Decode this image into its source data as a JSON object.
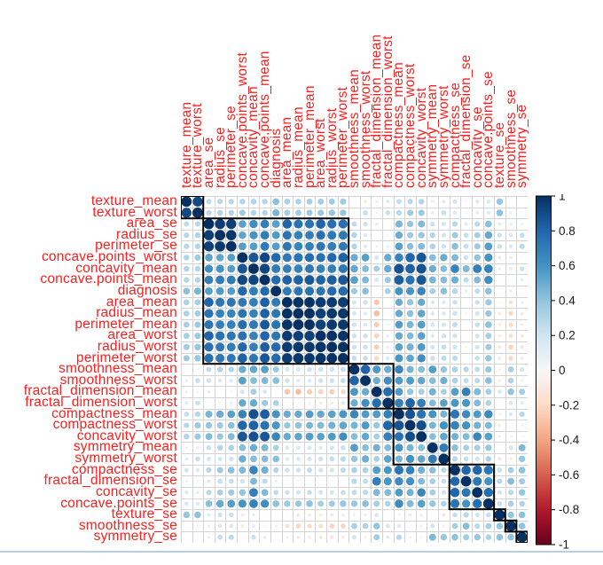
{
  "chart_data": {
    "type": "heatmap",
    "subtype": "correlation-matrix",
    "title": "",
    "variables": [
      "texture_mean",
      "texture_worst",
      "area_se",
      "radius_se",
      "perimeter_se",
      "concave.points_worst",
      "concavity_mean",
      "concave.points_mean",
      "diagnosis",
      "area_mean",
      "radius_mean",
      "perimeter_mean",
      "area_worst",
      "radius_worst",
      "perimeter_worst",
      "smoothness_mean",
      "smoothness_worst",
      "fractal_dimension_mean",
      "fractal_dimension_worst",
      "compactness_mean",
      "compactness_worst",
      "concavity_worst",
      "symmetry_mean",
      "symmetry_worst",
      "compactness_se",
      "fractal_dimension_se",
      "concavity_se",
      "concave.points_se",
      "texture_se",
      "smoothness_se",
      "symmetry_se"
    ],
    "corr_lower_triangle": [
      [
        1
      ],
      [
        0.91,
        1
      ],
      [
        0.26,
        0.28,
        1
      ],
      [
        0.28,
        0.3,
        0.95,
        1
      ],
      [
        0.28,
        0.3,
        0.94,
        0.97,
        1
      ],
      [
        0.3,
        0.36,
        0.54,
        0.53,
        0.56,
        1
      ],
      [
        0.3,
        0.3,
        0.62,
        0.6,
        0.56,
        0.86,
        1
      ],
      [
        0.29,
        0.3,
        0.69,
        0.7,
        0.71,
        0.91,
        0.92,
        1
      ],
      [
        0.42,
        0.46,
        0.55,
        0.57,
        0.56,
        0.79,
        0.7,
        0.78,
        1
      ],
      [
        0.32,
        0.34,
        0.8,
        0.73,
        0.73,
        0.72,
        0.69,
        0.82,
        0.71,
        1
      ],
      [
        0.32,
        0.35,
        0.74,
        0.68,
        0.67,
        0.74,
        0.68,
        0.82,
        0.73,
        0.99,
        1
      ],
      [
        0.33,
        0.36,
        0.74,
        0.69,
        0.69,
        0.77,
        0.72,
        0.85,
        0.74,
        0.99,
        1.0,
        1
      ],
      [
        0.34,
        0.37,
        0.81,
        0.75,
        0.73,
        0.75,
        0.68,
        0.81,
        0.73,
        0.96,
        0.94,
        0.94,
        1
      ],
      [
        0.35,
        0.39,
        0.76,
        0.72,
        0.7,
        0.79,
        0.69,
        0.83,
        0.78,
        0.96,
        0.97,
        0.97,
        0.99,
        1
      ],
      [
        0.36,
        0.39,
        0.76,
        0.72,
        0.72,
        0.82,
        0.73,
        0.86,
        0.78,
        0.96,
        0.97,
        0.97,
        0.98,
        0.99,
        1
      ],
      [
        -0.02,
        0.04,
        0.25,
        0.3,
        0.3,
        0.5,
        0.52,
        0.55,
        0.36,
        0.18,
        0.17,
        0.21,
        0.21,
        0.21,
        0.24,
        1
      ],
      [
        0.08,
        0.23,
        0.21,
        0.14,
        0.13,
        0.55,
        0.43,
        0.45,
        0.42,
        0.21,
        0.12,
        0.15,
        0.21,
        0.22,
        0.24,
        0.81,
        1
      ],
      [
        -0.08,
        -0.05,
        -0.09,
        0.0,
        0.04,
        0.18,
        0.34,
        0.17,
        -0.01,
        -0.28,
        -0.31,
        -0.26,
        -0.23,
        -0.25,
        -0.21,
        0.58,
        0.5,
        1
      ],
      [
        0.12,
        0.22,
        0.02,
        0.04,
        0.09,
        0.51,
        0.51,
        0.37,
        0.32,
        0.0,
        -0.01,
        0.05,
        0.08,
        0.09,
        0.14,
        0.5,
        0.62,
        0.77,
        1
      ],
      [
        0.24,
        0.28,
        0.46,
        0.5,
        0.55,
        0.67,
        0.88,
        0.83,
        0.6,
        0.5,
        0.51,
        0.56,
        0.51,
        0.54,
        0.59,
        0.66,
        0.57,
        0.57,
        0.69,
        1
      ],
      [
        0.28,
        0.36,
        0.39,
        0.36,
        0.42,
        0.8,
        0.82,
        0.75,
        0.59,
        0.39,
        0.41,
        0.46,
        0.44,
        0.48,
        0.53,
        0.47,
        0.57,
        0.39,
        0.81,
        0.87,
        1
      ],
      [
        0.3,
        0.37,
        0.44,
        0.38,
        0.44,
        0.86,
        0.88,
        0.86,
        0.66,
        0.51,
        0.53,
        0.56,
        0.54,
        0.57,
        0.62,
        0.43,
        0.52,
        0.34,
        0.69,
        0.75,
        0.89,
        1
      ],
      [
        0.07,
        0.09,
        0.22,
        0.3,
        0.31,
        0.43,
        0.5,
        0.46,
        0.33,
        0.15,
        0.15,
        0.18,
        0.14,
        0.19,
        0.22,
        0.56,
        0.43,
        0.48,
        0.44,
        0.6,
        0.47,
        0.43,
        1
      ],
      [
        0.11,
        0.23,
        0.18,
        0.19,
        0.21,
        0.5,
        0.43,
        0.43,
        0.42,
        0.14,
        0.16,
        0.19,
        0.21,
        0.24,
        0.27,
        0.39,
        0.49,
        0.33,
        0.54,
        0.47,
        0.61,
        0.53,
        0.7,
        1
      ],
      [
        0.19,
        0.14,
        0.28,
        0.36,
        0.42,
        0.45,
        0.67,
        0.49,
        0.29,
        0.21,
        0.21,
        0.25,
        0.2,
        0.2,
        0.26,
        0.32,
        0.32,
        0.56,
        0.59,
        0.74,
        0.68,
        0.48,
        0.42,
        0.28,
        1
      ],
      [
        0.05,
        0.05,
        0.13,
        0.23,
        0.24,
        0.21,
        0.45,
        0.26,
        0.08,
        -0.02,
        -0.04,
        -0.01,
        0.0,
        -0.04,
        0.0,
        0.28,
        0.25,
        0.69,
        0.59,
        0.64,
        0.61,
        0.44,
        0.33,
        0.24,
        0.8,
        1
      ],
      [
        0.14,
        0.1,
        0.27,
        0.33,
        0.36,
        0.4,
        0.69,
        0.44,
        0.25,
        0.21,
        0.19,
        0.23,
        0.19,
        0.19,
        0.23,
        0.25,
        0.27,
        0.45,
        0.44,
        0.57,
        0.48,
        0.66,
        0.34,
        0.2,
        0.8,
        0.73,
        1
      ],
      [
        0.16,
        0.13,
        0.42,
        0.51,
        0.56,
        0.6,
        0.68,
        0.62,
        0.41,
        0.37,
        0.38,
        0.41,
        0.34,
        0.36,
        0.39,
        0.38,
        0.42,
        0.34,
        0.31,
        0.64,
        0.45,
        0.55,
        0.39,
        0.31,
        0.74,
        0.61,
        0.77,
        1
      ],
      [
        0.39,
        0.41,
        0.11,
        0.21,
        0.22,
        -0.1,
        0.08,
        0.02,
        -0.01,
        -0.03,
        -0.1,
        -0.09,
        -0.08,
        -0.11,
        -0.1,
        0.07,
        -0.07,
        0.16,
        0.0,
        0.05,
        -0.09,
        -0.07,
        0.01,
        -0.13,
        0.23,
        0.28,
        0.19,
        0.23,
        1
      ],
      [
        0.01,
        -0.07,
        0.08,
        0.16,
        0.15,
        -0.09,
        0.1,
        0.03,
        -0.07,
        -0.17,
        -0.22,
        -0.2,
        -0.18,
        -0.23,
        -0.22,
        0.33,
        0.31,
        0.4,
        0.17,
        0.14,
        -0.01,
        -0.06,
        0.19,
        -0.07,
        0.34,
        0.43,
        0.27,
        0.33,
        0.4,
        1
      ],
      [
        0.01,
        -0.03,
        0.07,
        0.24,
        0.27,
        -0.03,
        0.22,
        0.1,
        -0.01,
        -0.07,
        -0.1,
        -0.08,
        -0.11,
        -0.13,
        -0.1,
        0.19,
        -0.06,
        0.35,
        0.11,
        0.28,
        0.06,
        0.04,
        0.45,
        0.39,
        0.41,
        0.35,
        0.39,
        0.31,
        0.41,
        0.41,
        1
      ]
    ],
    "clusters": [
      [
        0,
        1
      ],
      [
        2,
        14
      ],
      [
        15,
        18
      ],
      [
        19,
        23
      ],
      [
        24,
        27
      ],
      [
        28,
        28
      ],
      [
        29,
        29
      ],
      [
        30,
        30
      ]
    ],
    "colorbar": {
      "min": -1,
      "max": 1,
      "tick_labels": [
        "1",
        "0.8",
        "0.6",
        "0.4",
        "0.2",
        "0",
        "-0.2",
        "-0.4",
        "-0.6",
        "-0.8",
        "-1"
      ],
      "palette_stops": [
        "#67001F",
        "#B2182B",
        "#D6604D",
        "#F4A582",
        "#FDDBC7",
        "#F7F7F7",
        "#D1E5F0",
        "#92C5DE",
        "#4393C3",
        "#2166AC",
        "#053061"
      ]
    },
    "style": {
      "variable_label_color": "#fb2020",
      "legend_text_color": "#1a1a1a",
      "grid_color": "#d4d4d4",
      "cluster_box_color": "#000000"
    },
    "layout_hints": {
      "legend_position": "right",
      "grid": true,
      "circle_area_encodes": "abs(correlation)"
    }
  }
}
